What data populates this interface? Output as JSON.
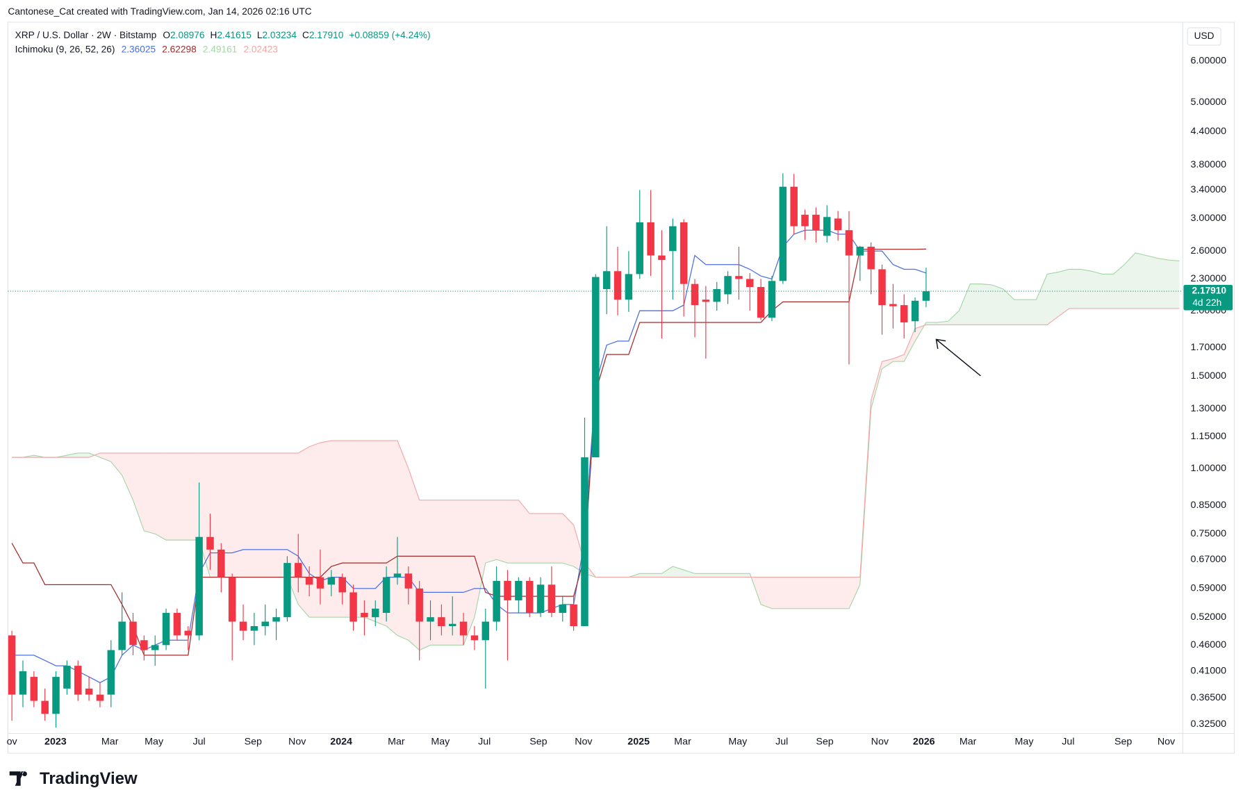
{
  "attribution": "Cantonese_Cat created with TradingView.com, Jan 14, 2026 02:16 UTC",
  "logo": "TradingView",
  "legend": {
    "symbol": "XRP / U.S. Dollar · 2W · Bitstamp",
    "ohlc": [
      {
        "key": "O",
        "value": "2.08976"
      },
      {
        "key": "H",
        "value": "2.41615"
      },
      {
        "key": "L",
        "value": "2.03234"
      },
      {
        "key": "C",
        "value": "2.17910"
      }
    ],
    "change": "+0.08859 (+4.24%)",
    "indicator": "Ichimoku (9, 26, 52, 26)",
    "indicator_values": [
      "2.36025",
      "2.62298",
      "2.49161",
      "2.02423"
    ]
  },
  "currency": "USD",
  "price_tag": {
    "price": "2.17910",
    "countdown": "4d 22h",
    "color": "#089981"
  },
  "chart_data": {
    "type": "candlestick",
    "log_scale": true,
    "grid": false,
    "up_color": "#089981",
    "down_color": "#f23645",
    "xlim": [
      -0.36,
      106.3
    ],
    "ylim": [
      0.312,
      7.06
    ],
    "xticks": [
      {
        "value": 0,
        "label": "ov"
      },
      {
        "value": 3.96,
        "label": "2023"
      },
      {
        "value": 8.9,
        "label": "Mar"
      },
      {
        "value": 12.9,
        "label": "May"
      },
      {
        "value": 17,
        "label": "Jul"
      },
      {
        "value": 21.9,
        "label": "Sep"
      },
      {
        "value": 25.9,
        "label": "Nov"
      },
      {
        "value": 29.9,
        "label": "2024"
      },
      {
        "value": 34.9,
        "label": "Mar"
      },
      {
        "value": 38.9,
        "label": "May"
      },
      {
        "value": 42.9,
        "label": "Jul"
      },
      {
        "value": 47.8,
        "label": "Sep"
      },
      {
        "value": 51.9,
        "label": "Nov"
      },
      {
        "value": 56.9,
        "label": "2025"
      },
      {
        "value": 60.9,
        "label": "Mar"
      },
      {
        "value": 65.9,
        "label": "May"
      },
      {
        "value": 69.9,
        "label": "Jul"
      },
      {
        "value": 73.8,
        "label": "Sep"
      },
      {
        "value": 78.8,
        "label": "Nov"
      },
      {
        "value": 82.8,
        "label": "2026"
      },
      {
        "value": 86.8,
        "label": "Mar"
      },
      {
        "value": 91.9,
        "label": "May"
      },
      {
        "value": 95.9,
        "label": "Jul"
      },
      {
        "value": 100.9,
        "label": "Sep"
      },
      {
        "value": 104.8,
        "label": "Nov"
      }
    ],
    "yticks": [
      {
        "value": 6,
        "label": "6.00000"
      },
      {
        "value": 5,
        "label": "5.00000"
      },
      {
        "value": 4.4,
        "label": "4.40000"
      },
      {
        "value": 3.8,
        "label": "3.80000"
      },
      {
        "value": 3.4,
        "label": "3.40000"
      },
      {
        "value": 3,
        "label": "3.00000"
      },
      {
        "value": 2.6,
        "label": "2.60000"
      },
      {
        "value": 2.3,
        "label": "2.30000"
      },
      {
        "value": 2,
        "label": "2.00000"
      },
      {
        "value": 1.7,
        "label": "1.70000"
      },
      {
        "value": 1.5,
        "label": "1.50000"
      },
      {
        "value": 1.3,
        "label": "1.30000"
      },
      {
        "value": 1.15,
        "label": "1.15000"
      },
      {
        "value": 1,
        "label": "1.00000"
      },
      {
        "value": 0.85,
        "label": "0.85000"
      },
      {
        "value": 0.75,
        "label": "0.75000"
      },
      {
        "value": 0.67,
        "label": "0.67000"
      },
      {
        "value": 0.59,
        "label": "0.59000"
      },
      {
        "value": 0.52,
        "label": "0.52000"
      },
      {
        "value": 0.46,
        "label": "0.46000"
      },
      {
        "value": 0.41,
        "label": "0.41000"
      },
      {
        "value": 0.365,
        "label": "0.36500"
      },
      {
        "value": 0.325,
        "label": "0.32500"
      }
    ],
    "open": [
      0.48,
      0.37,
      0.4,
      0.36,
      0.34,
      0.38,
      0.42,
      0.38,
      0.37,
      0.37,
      0.45,
      0.51,
      0.47,
      0.45,
      0.46,
      0.53,
      0.49,
      0.48,
      0.74,
      0.7,
      0.62,
      0.51,
      0.49,
      0.5,
      0.51,
      0.52,
      0.66,
      0.62,
      0.62,
      0.6,
      0.62,
      0.58,
      0.53,
      0.52,
      0.53,
      0.62,
      0.63,
      0.59,
      0.51,
      0.52,
      0.5,
      0.51,
      0.48,
      0.47,
      0.51,
      0.61,
      0.56,
      0.61,
      0.53,
      0.6,
      0.53,
      0.55,
      0.5,
      1.05,
      2.2,
      2.38,
      2.1,
      2.35,
      2.95,
      2.55,
      2.6,
      2.95,
      2.25,
      2.1,
      2.08,
      2.15,
      2.33,
      2.3,
      2.22,
      1.94,
      2.28,
      3.45,
      3.05,
      3.05,
      2.78,
      3.0,
      2.85,
      2.55,
      2.65,
      2.4,
      2.06,
      2.05,
      1.91,
      2.08976
    ],
    "high": [
      0.49,
      0.43,
      0.41,
      0.38,
      0.41,
      0.43,
      0.43,
      0.4,
      0.39,
      0.47,
      0.58,
      0.53,
      0.48,
      0.48,
      0.54,
      0.54,
      0.5,
      0.94,
      0.82,
      0.72,
      0.63,
      0.55,
      0.53,
      0.55,
      0.54,
      0.68,
      0.75,
      0.65,
      0.7,
      0.64,
      0.63,
      0.6,
      0.56,
      0.56,
      0.65,
      0.74,
      0.65,
      0.61,
      0.56,
      0.55,
      0.57,
      0.53,
      0.5,
      0.54,
      0.65,
      0.64,
      0.62,
      0.62,
      0.62,
      0.65,
      0.57,
      0.57,
      1.25,
      2.35,
      2.9,
      2.65,
      2.6,
      3.4,
      3.4,
      2.85,
      3.0,
      2.99,
      2.3,
      2.23,
      2.27,
      2.38,
      2.65,
      2.36,
      2.3,
      2.33,
      3.66,
      3.65,
      3.12,
      3.15,
      3.18,
      3.1,
      3.1,
      2.66,
      2.7,
      2.45,
      2.25,
      2.15,
      2.12,
      2.41615
    ],
    "low": [
      0.33,
      0.35,
      0.35,
      0.33,
      0.32,
      0.37,
      0.36,
      0.36,
      0.35,
      0.35,
      0.44,
      0.44,
      0.43,
      0.42,
      0.45,
      0.47,
      0.45,
      0.47,
      0.64,
      0.58,
      0.43,
      0.47,
      0.46,
      0.48,
      0.47,
      0.51,
      0.58,
      0.57,
      0.55,
      0.57,
      0.55,
      0.49,
      0.48,
      0.5,
      0.51,
      0.6,
      0.55,
      0.43,
      0.47,
      0.48,
      0.48,
      0.46,
      0.45,
      0.38,
      0.49,
      0.43,
      0.53,
      0.52,
      0.52,
      0.52,
      0.51,
      0.49,
      0.5,
      1.05,
      1.97,
      1.96,
      1.99,
      2.3,
      2.33,
      1.77,
      2.1,
      1.95,
      1.78,
      1.62,
      2.0,
      2.06,
      2.1,
      2.0,
      1.92,
      1.91,
      2.25,
      2.8,
      2.73,
      2.7,
      2.7,
      2.72,
      1.58,
      2.28,
      2.15,
      1.8,
      1.85,
      1.77,
      1.82,
      2.03234
    ],
    "close": [
      0.37,
      0.41,
      0.36,
      0.34,
      0.4,
      0.42,
      0.37,
      0.37,
      0.36,
      0.45,
      0.51,
      0.46,
      0.45,
      0.46,
      0.53,
      0.48,
      0.48,
      0.74,
      0.7,
      0.62,
      0.51,
      0.49,
      0.5,
      0.51,
      0.52,
      0.66,
      0.62,
      0.6,
      0.59,
      0.62,
      0.58,
      0.51,
      0.52,
      0.54,
      0.62,
      0.63,
      0.59,
      0.51,
      0.52,
      0.5,
      0.505,
      0.48,
      0.47,
      0.51,
      0.61,
      0.56,
      0.61,
      0.53,
      0.6,
      0.53,
      0.55,
      0.5,
      1.05,
      2.32,
      2.38,
      2.1,
      2.35,
      2.95,
      2.55,
      2.5,
      2.9,
      2.25,
      2.05,
      2.08,
      2.2,
      2.33,
      2.3,
      2.22,
      1.94,
      2.28,
      3.45,
      2.9,
      2.9,
      2.85,
      3.02,
      2.85,
      2.55,
      2.65,
      2.4,
      2.05,
      2.04,
      1.9,
      2.09,
      2.1791
    ],
    "lines": [
      {
        "color": "#4a6fe3",
        "values": [
          0.44,
          0.44,
          0.44,
          0.43,
          0.42,
          0.42,
          0.41,
          0.4,
          0.39,
          0.4,
          0.44,
          0.46,
          0.45,
          0.46,
          0.47,
          0.47,
          0.47,
          0.63,
          0.69,
          0.69,
          0.69,
          0.7,
          0.7,
          0.7,
          0.7,
          0.7,
          0.68,
          0.63,
          0.61,
          0.62,
          0.62,
          0.59,
          0.59,
          0.59,
          0.62,
          0.62,
          0.62,
          0.58,
          0.58,
          0.58,
          0.58,
          0.58,
          0.59,
          0.59,
          0.55,
          0.53,
          0.53,
          0.53,
          0.53,
          0.54,
          0.55,
          0.55,
          0.73,
          1.45,
          1.72,
          1.75,
          1.75,
          2.0,
          2.0,
          2.0,
          2.0,
          2.05,
          2.55,
          2.45,
          2.45,
          2.45,
          2.45,
          2.4,
          2.33,
          2.3,
          2.65,
          2.8,
          2.85,
          2.85,
          2.85,
          2.8,
          2.8,
          2.6,
          2.6,
          2.6,
          2.45,
          2.4,
          2.4,
          2.36025
        ]
      },
      {
        "color": "#a52a2a",
        "values": [
          0.72,
          0.66,
          0.66,
          0.6,
          0.6,
          0.6,
          0.6,
          0.6,
          0.6,
          0.6,
          0.55,
          0.5,
          0.44,
          0.44,
          0.44,
          0.44,
          0.44,
          0.62,
          0.62,
          0.62,
          0.62,
          0.62,
          0.62,
          0.62,
          0.62,
          0.62,
          0.62,
          0.62,
          0.62,
          0.65,
          0.66,
          0.66,
          0.66,
          0.66,
          0.66,
          0.68,
          0.68,
          0.68,
          0.68,
          0.68,
          0.68,
          0.68,
          0.68,
          0.58,
          0.57,
          0.57,
          0.57,
          0.57,
          0.57,
          0.57,
          0.57,
          0.57,
          0.68,
          1.4,
          1.65,
          1.65,
          1.65,
          1.9,
          1.9,
          1.9,
          1.9,
          1.9,
          1.9,
          1.9,
          1.9,
          1.9,
          1.9,
          1.9,
          1.9,
          2.0,
          2.08,
          2.08,
          2.08,
          2.08,
          2.08,
          2.08,
          2.08,
          2.62,
          2.62,
          2.62,
          2.62,
          2.62,
          2.62,
          2.62298
        ]
      }
    ],
    "cloud": {
      "up_fill": "rgba(67,160,71,0.10)",
      "down_fill": "rgba(242,54,69,0.10)",
      "span_a": {
        "color": "#a5d6a7",
        "values": [
          1.05,
          1.05,
          1.06,
          1.05,
          1.05,
          1.06,
          1.07,
          1.07,
          1.05,
          1.03,
          0.97,
          0.87,
          0.76,
          0.75,
          0.73,
          0.73,
          0.73,
          0.73,
          0.62,
          0.62,
          0.62,
          0.62,
          0.62,
          0.62,
          0.62,
          0.62,
          0.55,
          0.52,
          0.52,
          0.52,
          0.52,
          0.52,
          0.52,
          0.51,
          0.5,
          0.48,
          0.47,
          0.45,
          0.46,
          0.46,
          0.46,
          0.46,
          0.52,
          0.66,
          0.67,
          0.66,
          0.66,
          0.66,
          0.66,
          0.66,
          0.66,
          0.65,
          0.63,
          0.62,
          0.62,
          0.62,
          0.62,
          0.63,
          0.63,
          0.63,
          0.65,
          0.64,
          0.63,
          0.63,
          0.63,
          0.63,
          0.63,
          0.63,
          0.55,
          0.54,
          0.54,
          0.54,
          0.54,
          0.54,
          0.54,
          0.54,
          0.54,
          0.6,
          1.3,
          1.55,
          1.6,
          1.6,
          1.75,
          1.9,
          1.9,
          1.91,
          2.0,
          2.25,
          2.25,
          2.24,
          2.2,
          2.1,
          2.1,
          2.1,
          2.35,
          2.37,
          2.4,
          2.4,
          2.38,
          2.35,
          2.35,
          2.45,
          2.58,
          2.55,
          2.52,
          2.5,
          2.49
        ]
      },
      "span_b": {
        "color": "#f2a7a7",
        "values": [
          1.05,
          1.05,
          1.05,
          1.05,
          1.05,
          1.05,
          1.05,
          1.05,
          1.07,
          1.07,
          1.07,
          1.07,
          1.07,
          1.07,
          1.07,
          1.07,
          1.07,
          1.07,
          1.07,
          1.07,
          1.07,
          1.07,
          1.07,
          1.07,
          1.07,
          1.07,
          1.07,
          1.1,
          1.12,
          1.13,
          1.13,
          1.13,
          1.13,
          1.13,
          1.13,
          1.13,
          1.0,
          0.87,
          0.87,
          0.87,
          0.87,
          0.87,
          0.87,
          0.87,
          0.87,
          0.87,
          0.87,
          0.82,
          0.82,
          0.82,
          0.82,
          0.78,
          0.66,
          0.62,
          0.62,
          0.62,
          0.62,
          0.62,
          0.62,
          0.62,
          0.62,
          0.62,
          0.62,
          0.62,
          0.62,
          0.62,
          0.62,
          0.62,
          0.62,
          0.62,
          0.62,
          0.62,
          0.62,
          0.62,
          0.62,
          0.62,
          0.62,
          0.62,
          1.35,
          1.6,
          1.62,
          1.65,
          1.85,
          1.88,
          1.88,
          1.88,
          1.88,
          1.88,
          1.88,
          1.88,
          1.88,
          1.88,
          1.88,
          1.88,
          1.88,
          1.95,
          2.02,
          2.02,
          2.02,
          2.02,
          2.02,
          2.02,
          2.02,
          2.02,
          2.02,
          2.02,
          2.02
        ]
      }
    }
  }
}
